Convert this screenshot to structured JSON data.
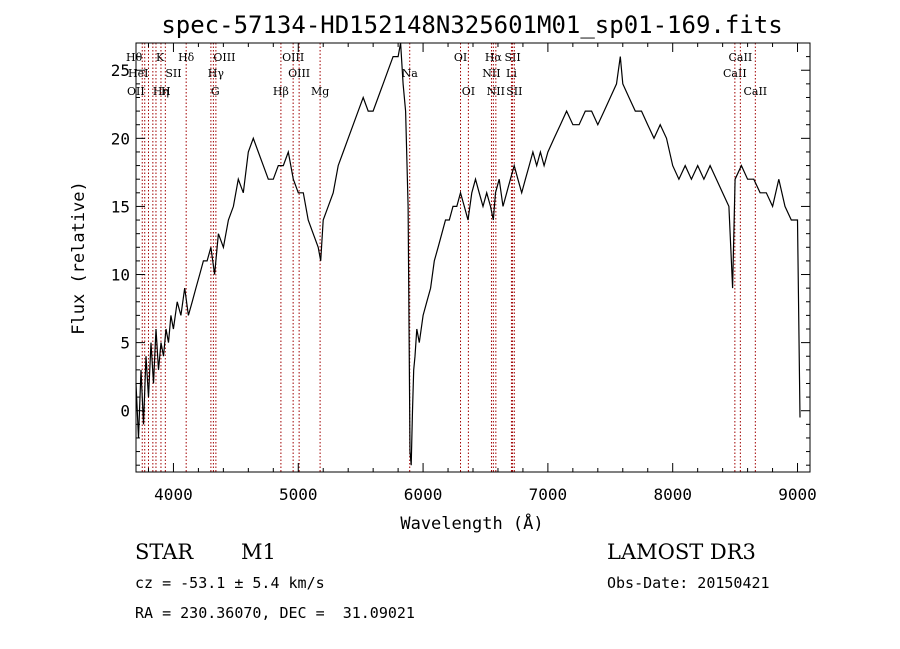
{
  "chart_data": {
    "type": "line",
    "title": "spec-57134-HD152148N325601M01_sp01-169.fits",
    "xlabel": "Wavelength (Å)",
    "ylabel": "Flux (relative)",
    "xlim": [
      3700,
      9100
    ],
    "ylim": [
      -4.5,
      27
    ],
    "x_ticks": [
      4000,
      5000,
      6000,
      7000,
      8000,
      9000
    ],
    "y_ticks": [
      0,
      5,
      10,
      15,
      20,
      25
    ],
    "line_color": "#000000",
    "marker_color": "#a00000",
    "series": [
      {
        "x": [
          3700,
          3720,
          3740,
          3760,
          3780,
          3800,
          3820,
          3840,
          3860,
          3880,
          3900,
          3920,
          3940,
          3960,
          3980,
          4000,
          4030,
          4060,
          4090,
          4120,
          4150,
          4180,
          4210,
          4240,
          4270,
          4300,
          4330,
          4360,
          4400,
          4440,
          4480,
          4520,
          4560,
          4600,
          4640,
          4680,
          4720,
          4760,
          4800,
          4840,
          4880,
          4920,
          4960,
          5000,
          5040,
          5080,
          5120,
          5160,
          5180,
          5200,
          5240,
          5280,
          5320,
          5360,
          5400,
          5440,
          5480,
          5520,
          5560,
          5600,
          5640,
          5680,
          5720,
          5760,
          5800,
          5820,
          5840,
          5860,
          5880,
          5895,
          5905,
          5915,
          5925,
          5935,
          5950,
          5970,
          6000,
          6030,
          6060,
          6090,
          6120,
          6150,
          6180,
          6210,
          6240,
          6270,
          6300,
          6330,
          6360,
          6390,
          6420,
          6450,
          6480,
          6510,
          6540,
          6563,
          6580,
          6610,
          6640,
          6670,
          6700,
          6730,
          6760,
          6790,
          6820,
          6850,
          6880,
          6910,
          6940,
          6970,
          7000,
          7050,
          7100,
          7150,
          7200,
          7250,
          7300,
          7350,
          7400,
          7450,
          7500,
          7550,
          7580,
          7600,
          7650,
          7700,
          7750,
          7800,
          7850,
          7900,
          7950,
          8000,
          8050,
          8100,
          8150,
          8200,
          8250,
          8300,
          8350,
          8400,
          8450,
          8480,
          8500,
          8550,
          8600,
          8650,
          8700,
          8750,
          8800,
          8850,
          8900,
          8950,
          9000,
          9020
        ],
        "y": [
          2,
          -2,
          3,
          -1,
          4,
          1,
          5,
          2,
          6,
          3,
          5,
          4,
          6,
          5,
          7,
          6,
          8,
          7,
          9,
          7,
          8,
          9,
          10,
          11,
          11,
          12,
          10,
          13,
          12,
          14,
          15,
          17,
          16,
          19,
          20,
          19,
          18,
          17,
          17,
          18,
          18,
          19,
          17,
          16,
          16,
          14,
          13,
          12,
          11,
          14,
          15,
          16,
          18,
          19,
          20,
          21,
          22,
          23,
          22,
          22,
          23,
          24,
          25,
          26,
          26,
          27,
          24,
          22,
          15,
          -3,
          -4,
          0,
          3,
          4,
          6,
          5,
          7,
          8,
          9,
          11,
          12,
          13,
          14,
          14,
          15,
          15,
          16,
          15,
          14,
          16,
          17,
          16,
          15,
          16,
          15,
          14,
          16,
          17,
          15,
          16,
          17,
          18,
          17,
          16,
          17,
          18,
          19,
          18,
          19,
          18,
          19,
          20,
          21,
          22,
          21,
          21,
          22,
          22,
          21,
          22,
          23,
          24,
          26,
          24,
          23,
          22,
          22,
          21,
          20,
          21,
          20,
          18,
          17,
          18,
          17,
          18,
          17,
          18,
          17,
          16,
          15,
          9,
          17,
          18,
          17,
          17,
          16,
          16,
          15,
          17,
          15,
          14,
          14,
          -0.5
        ]
      }
    ],
    "lines": [
      {
        "x": 3750,
        "label": "Hθ",
        "row": 0,
        "anchor": "end"
      },
      {
        "x": 3770,
        "label": "OII",
        "row": 2,
        "anchor": "end"
      },
      {
        "x": 3800,
        "label": "HeI",
        "row": 1,
        "anchor": "end"
      },
      {
        "x": 3835,
        "label": "Hη",
        "row": 2,
        "anchor": "start"
      },
      {
        "x": 3860,
        "label": "K",
        "row": 0,
        "anchor": "start"
      },
      {
        "x": 3900,
        "label": "H",
        "row": 2,
        "anchor": "start"
      },
      {
        "x": 3935,
        "label": "SII",
        "row": 1,
        "anchor": "start"
      },
      {
        "x": 4102,
        "label": "Hδ",
        "row": 0,
        "anchor": "middle"
      },
      {
        "x": 4300,
        "label": "G",
        "row": 2,
        "anchor": "start"
      },
      {
        "x": 4320,
        "label": "OIII",
        "row": 0,
        "anchor": "start"
      },
      {
        "x": 4340,
        "label": "Hγ",
        "row": 1,
        "anchor": "middle"
      },
      {
        "x": 4861,
        "label": "Hβ",
        "row": 2,
        "anchor": "middle"
      },
      {
        "x": 4959,
        "label": "OIII",
        "row": 0,
        "anchor": "middle"
      },
      {
        "x": 5007,
        "label": "OIII",
        "row": 1,
        "anchor": "middle"
      },
      {
        "x": 5175,
        "label": "Mg",
        "row": 2,
        "anchor": "middle"
      },
      {
        "x": 5893,
        "label": "Na",
        "row": 1,
        "anchor": "middle"
      },
      {
        "x": 6300,
        "label": "OI",
        "row": 0,
        "anchor": "middle"
      },
      {
        "x": 6363,
        "label": "OI",
        "row": 2,
        "anchor": "middle"
      },
      {
        "x": 6548,
        "label": "NII",
        "row": 1,
        "anchor": "middle"
      },
      {
        "x": 6563,
        "label": "Hα",
        "row": 0,
        "anchor": "middle"
      },
      {
        "x": 6583,
        "label": "NII",
        "row": 2,
        "anchor": "middle"
      },
      {
        "x": 6708,
        "label": "Li",
        "row": 1,
        "anchor": "middle"
      },
      {
        "x": 6717,
        "label": "SII",
        "row": 0,
        "anchor": "middle"
      },
      {
        "x": 6731,
        "label": "SII",
        "row": 2,
        "anchor": "middle"
      },
      {
        "x": 8498,
        "label": "CaII",
        "row": 1,
        "anchor": "middle"
      },
      {
        "x": 8542,
        "label": "CaII",
        "row": 0,
        "anchor": "middle"
      },
      {
        "x": 8662,
        "label": "CaII",
        "row": 2,
        "anchor": "middle"
      }
    ]
  },
  "info": {
    "object_class": "STAR",
    "subclass": "M1",
    "survey": "LAMOST DR3",
    "cz": "cz = -53.1 ± 5.4 km/s",
    "obs_date": "Obs-Date: 20150421",
    "coords": "RA = 230.36070, DEC =  31.09021"
  }
}
